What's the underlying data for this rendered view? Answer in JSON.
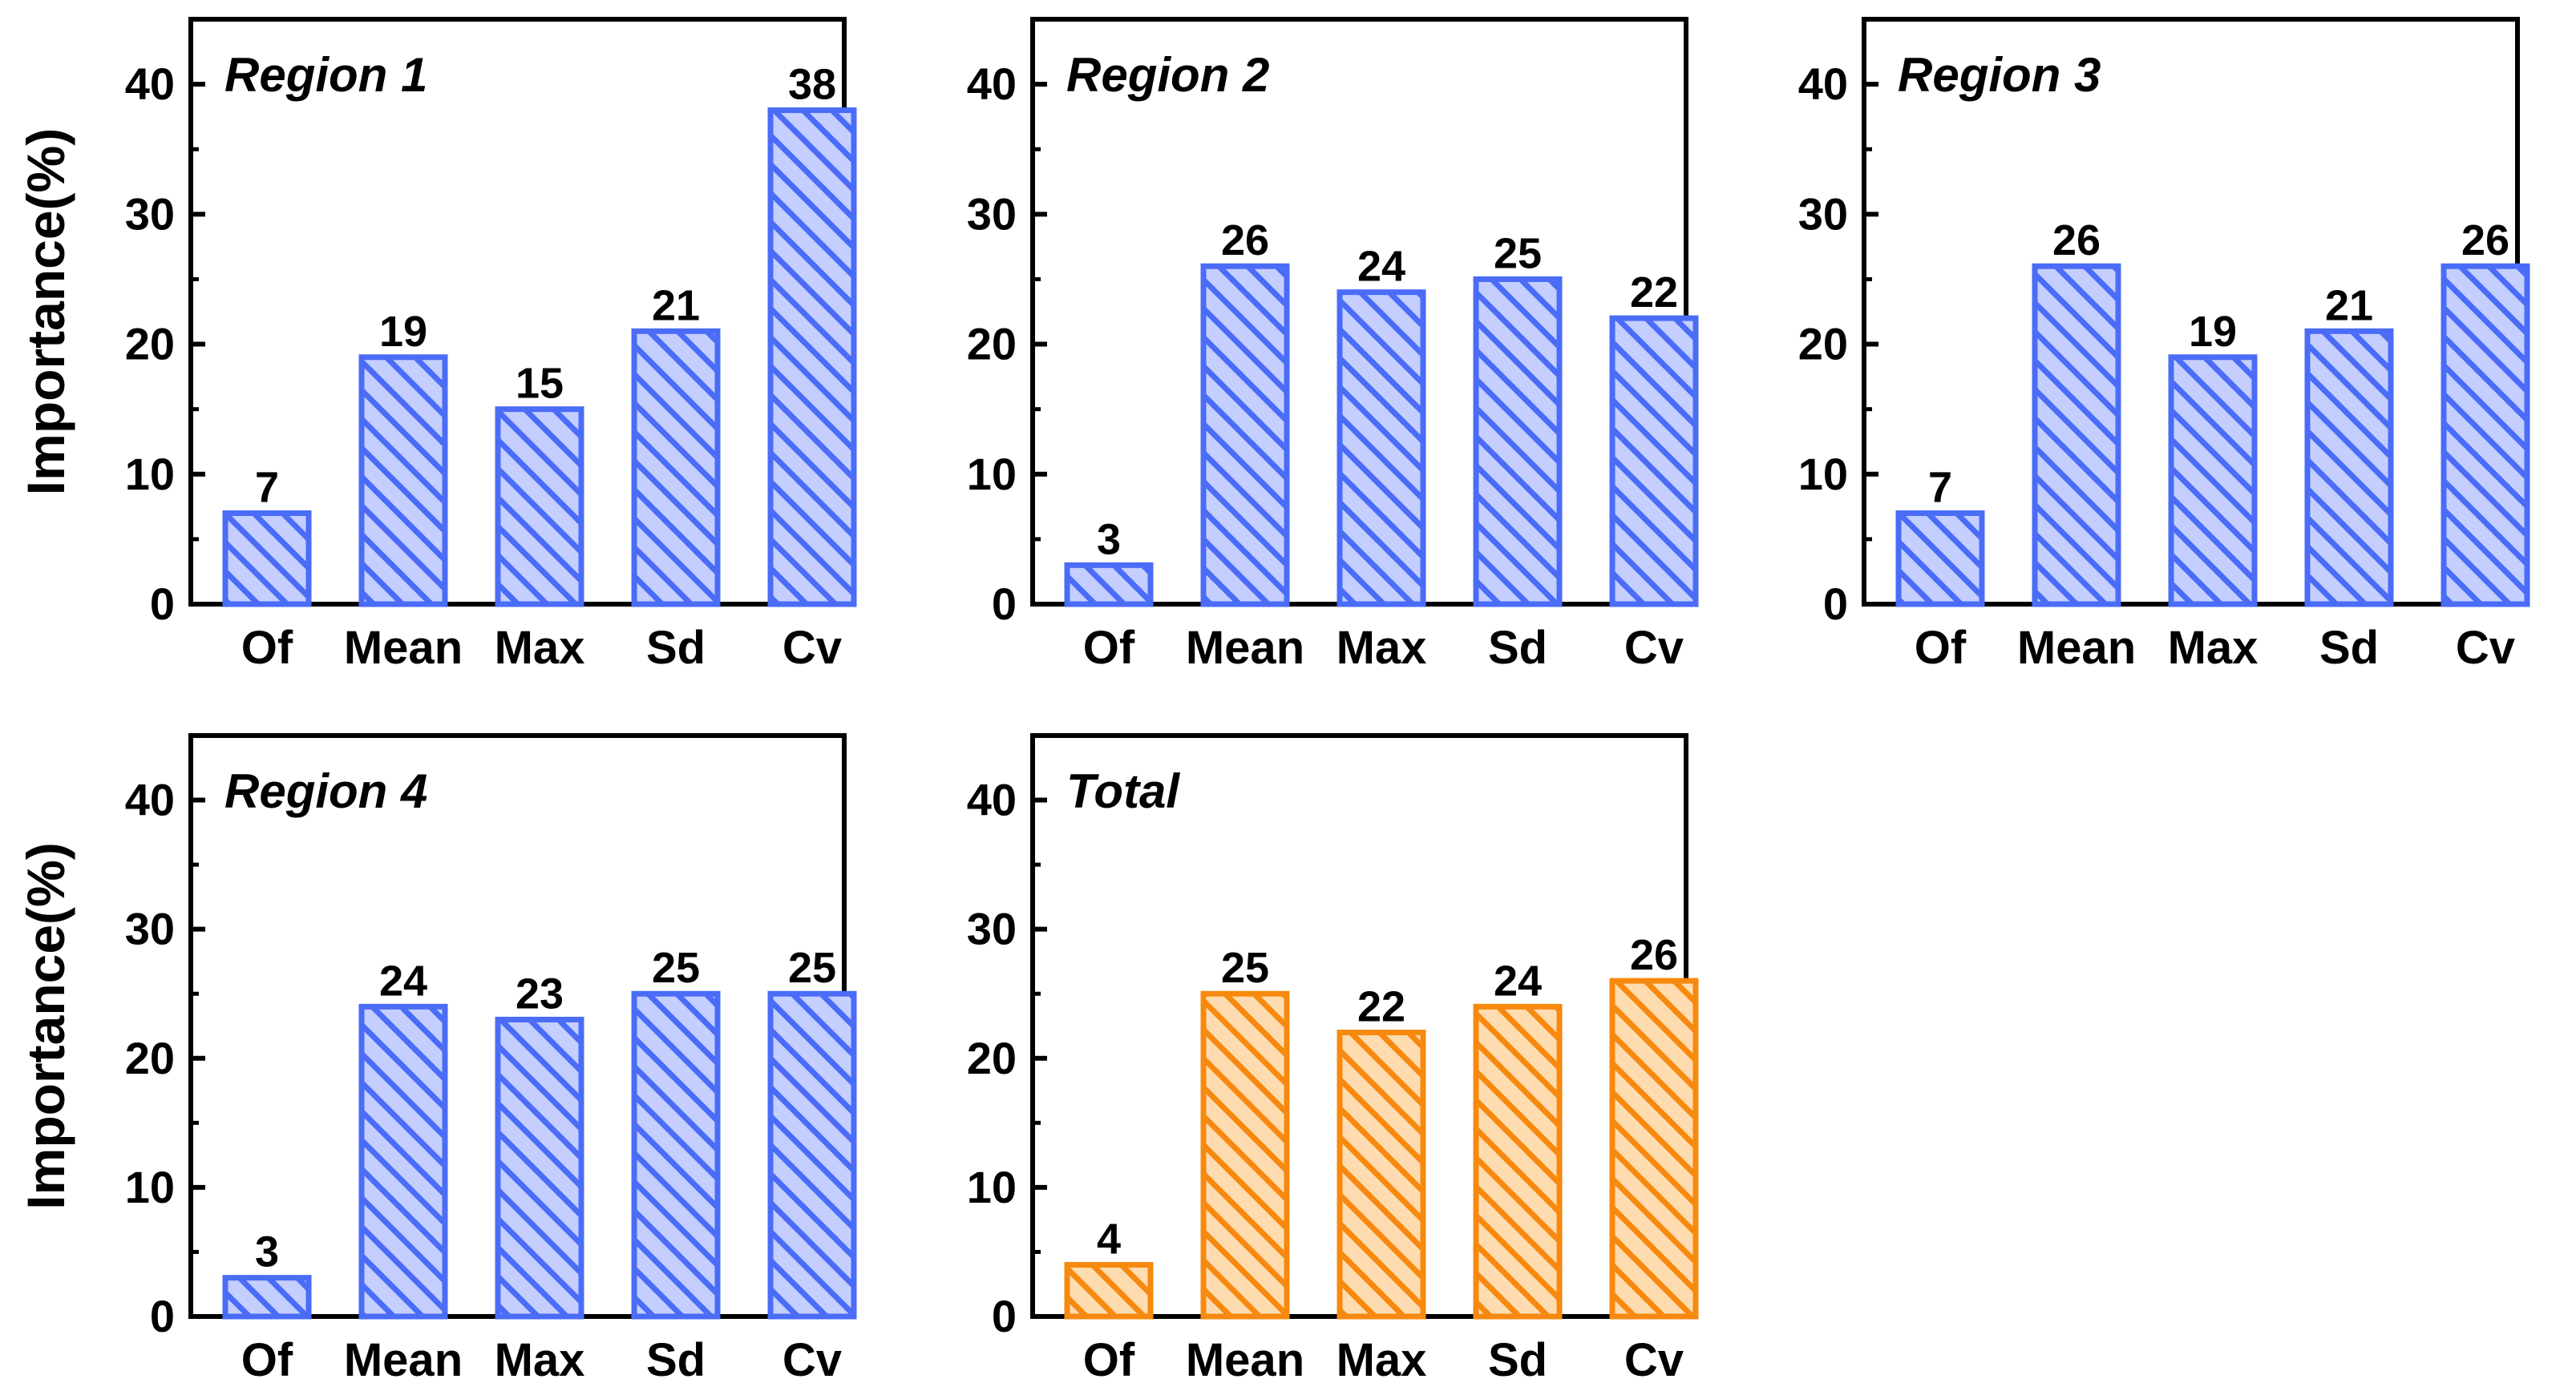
{
  "figure": {
    "y_axis_label": "Importance(%)"
  },
  "chart_data": [
    {
      "type": "bar",
      "title": "Region 1",
      "categories": [
        "Of",
        "Mean",
        "Max",
        "Sd",
        "Cv"
      ],
      "values": [
        7,
        19,
        15,
        21,
        38
      ],
      "ylabel": "Importance(%)",
      "ylim": [
        0,
        45
      ],
      "yticks": [
        0,
        10,
        20,
        30,
        40
      ],
      "color": "#4a6cf7",
      "fill": "#c4ceff"
    },
    {
      "type": "bar",
      "title": "Region 2",
      "categories": [
        "Of",
        "Mean",
        "Max",
        "Sd",
        "Cv"
      ],
      "values": [
        3,
        26,
        24,
        25,
        22
      ],
      "ylabel": "",
      "ylim": [
        0,
        45
      ],
      "yticks": [
        0,
        10,
        20,
        30,
        40
      ],
      "color": "#4a6cf7",
      "fill": "#c4ceff"
    },
    {
      "type": "bar",
      "title": "Region 3",
      "categories": [
        "Of",
        "Mean",
        "Max",
        "Sd",
        "Cv"
      ],
      "values": [
        7,
        26,
        19,
        21,
        26
      ],
      "ylabel": "",
      "ylim": [
        0,
        45
      ],
      "yticks": [
        0,
        10,
        20,
        30,
        40
      ],
      "color": "#4a6cf7",
      "fill": "#c4ceff"
    },
    {
      "type": "bar",
      "title": "Region 4",
      "categories": [
        "Of",
        "Mean",
        "Max",
        "Sd",
        "Cv"
      ],
      "values": [
        3,
        24,
        23,
        25,
        25
      ],
      "ylabel": "Importance(%)",
      "ylim": [
        0,
        45
      ],
      "yticks": [
        0,
        10,
        20,
        30,
        40
      ],
      "color": "#4a6cf7",
      "fill": "#c4ceff"
    },
    {
      "type": "bar",
      "title": "Total",
      "categories": [
        "Of",
        "Mean",
        "Max",
        "Sd",
        "Cv"
      ],
      "values": [
        4,
        25,
        22,
        24,
        26
      ],
      "ylabel": "",
      "ylim": [
        0,
        45
      ],
      "yticks": [
        0,
        10,
        20,
        30,
        40
      ],
      "color": "#f7890f",
      "fill": "#ffdcb0"
    }
  ]
}
